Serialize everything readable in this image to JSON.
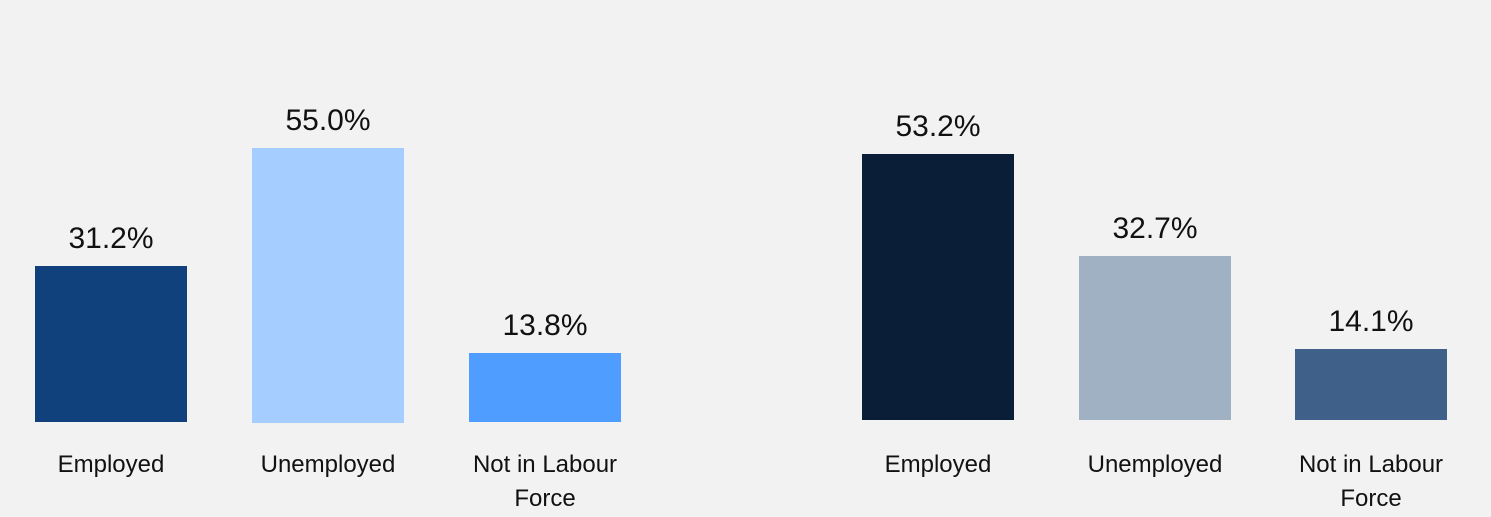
{
  "chart_data": [
    {
      "type": "bar",
      "categories": [
        "Employed",
        "Unemployed",
        "Not in Labour Force"
      ],
      "values": [
        31.2,
        55.0,
        13.8
      ],
      "value_labels": [
        "31.2%",
        "55.0%",
        "13.8%"
      ],
      "colors": [
        "#11417d",
        "#a6cdff",
        "#4f9eff"
      ],
      "ylim": [
        0,
        60
      ],
      "title": "",
      "xlabel": "",
      "ylabel": "",
      "grid": false
    },
    {
      "type": "bar",
      "categories": [
        "Employed",
        "Unemployed",
        "Not in Labour Force"
      ],
      "values": [
        53.2,
        32.7,
        14.1
      ],
      "value_labels": [
        "53.2%",
        "32.7%",
        "14.1%"
      ],
      "colors": [
        "#0a1e38",
        "#a1b1c4",
        "#3f6088"
      ],
      "ylim": [
        0,
        60
      ],
      "title": "",
      "xlabel": "",
      "ylabel": "",
      "grid": false
    }
  ]
}
